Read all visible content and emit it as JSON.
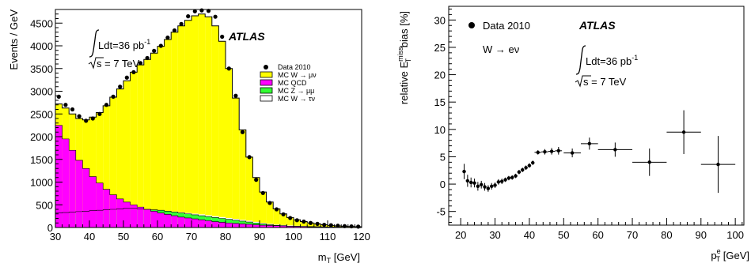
{
  "chart_data": [
    {
      "type": "histogram",
      "xlabel": "m",
      "xlabel_sub": "T",
      "xlabel_unit": "[GeV]",
      "ylabel": "Events / GeV",
      "xlim": [
        30,
        120
      ],
      "ylim": [
        0,
        4800
      ],
      "xticks": [
        "30",
        "40",
        "50",
        "60",
        "70",
        "80",
        "90",
        "100",
        "110",
        "120"
      ],
      "yticks": [
        "0",
        "500",
        "1000",
        "1500",
        "2000",
        "2500",
        "3000",
        "3500",
        "4000",
        "4500"
      ],
      "annotation": {
        "lumi": "Ldt=36 pb",
        "lumi_sup": "-1",
        "energy": "s = 7 TeV",
        "experiment": "ATLAS"
      },
      "legend_position": "top-right",
      "legend": [
        {
          "label": "Data 2010",
          "style": "marker",
          "color": "#000000"
        },
        {
          "label": "MC W → μν",
          "style": "fill",
          "color": "#ffff00"
        },
        {
          "label": "MC QCD",
          "style": "fill",
          "color": "#ff00ff"
        },
        {
          "label": "MC Z → μμ",
          "style": "fill",
          "color": "#33ff33"
        },
        {
          "label": "MC W → τν",
          "style": "fill",
          "color": "#ffffff"
        }
      ],
      "bin_edges": [
        30,
        32,
        34,
        36,
        38,
        40,
        42,
        44,
        46,
        48,
        50,
        52,
        54,
        56,
        58,
        60,
        62,
        64,
        66,
        68,
        70,
        72,
        74,
        76,
        78,
        80,
        82,
        84,
        86,
        88,
        90,
        92,
        94,
        96,
        98,
        100,
        102,
        104,
        106,
        108,
        110,
        112,
        114,
        116,
        118,
        120
      ],
      "stack": {
        "qcd": [
          2250,
          1950,
          1700,
          1480,
          1300,
          1120,
          980,
          840,
          720,
          630,
          560,
          500,
          450,
          400,
          360,
          320,
          290,
          260,
          230,
          210,
          190,
          170,
          150,
          130,
          115,
          100,
          90,
          80,
          70,
          60,
          50,
          45,
          40,
          35,
          30,
          25,
          22,
          20,
          18,
          15,
          12,
          10,
          8,
          6,
          5
        ],
        "zmumu": [
          320,
          330,
          340,
          350,
          360,
          370,
          380,
          390,
          400,
          410,
          420,
          420,
          410,
          400,
          390,
          380,
          360,
          340,
          320,
          300,
          280,
          260,
          240,
          220,
          200,
          180,
          160,
          140,
          120,
          100,
          80,
          60,
          50,
          40,
          30,
          25,
          20,
          15,
          12,
          10,
          8,
          6,
          5,
          4,
          3
        ],
        "wtaunu": [
          340,
          345,
          350,
          355,
          360,
          370,
          380,
          390,
          400,
          410,
          420,
          420,
          410,
          400,
          390,
          380,
          365,
          350,
          335,
          320,
          305,
          290,
          270,
          250,
          230,
          210,
          190,
          170,
          150,
          125,
          100,
          80,
          65,
          55,
          45,
          38,
          32,
          27,
          23,
          19,
          16,
          13,
          11,
          9,
          7
        ],
        "total": [
          2720,
          2630,
          2500,
          2400,
          2370,
          2430,
          2530,
          2680,
          2870,
          3050,
          3230,
          3420,
          3580,
          3700,
          3840,
          3990,
          4140,
          4300,
          4440,
          4560,
          4660,
          4700,
          4640,
          4440,
          4100,
          3500,
          2850,
          2150,
          1550,
          1100,
          780,
          560,
          410,
          300,
          220,
          170,
          130,
          100,
          80,
          60,
          45,
          35,
          28,
          22,
          18
        ]
      },
      "data": {
        "x": [
          31,
          33,
          35,
          37,
          39,
          41,
          43,
          45,
          47,
          49,
          51,
          53,
          55,
          57,
          59,
          61,
          63,
          65,
          67,
          69,
          71,
          73,
          75,
          77,
          79,
          81,
          83,
          85,
          87,
          89,
          91,
          93,
          95,
          97,
          99,
          101,
          103,
          105,
          107,
          109,
          111,
          113,
          115,
          117,
          119
        ],
        "y": [
          2880,
          2700,
          2600,
          2450,
          2350,
          2400,
          2500,
          2700,
          2880,
          3100,
          3300,
          3420,
          3620,
          3730,
          3890,
          4000,
          4180,
          4340,
          4480,
          4650,
          4760,
          4780,
          4770,
          4640,
          4200,
          3500,
          2900,
          2100,
          1550,
          1050,
          760,
          540,
          400,
          290,
          210,
          160,
          130,
          100,
          80,
          60,
          50,
          40,
          30,
          25,
          20
        ]
      }
    },
    {
      "type": "scatter",
      "xlabel": "p",
      "xlabel_sub": "T",
      "xlabel_sup": "e",
      "xlabel_unit": "[GeV]",
      "ylabel_pre": "relative E",
      "ylabel_sub": "T",
      "ylabel_sup": "miss",
      "ylabel_post": " bias [%]",
      "xlim": [
        16.5,
        102.5
      ],
      "ylim": [
        -7.5,
        32.5
      ],
      "xticks": [
        "20",
        "30",
        "40",
        "50",
        "60",
        "70",
        "80",
        "90",
        "100"
      ],
      "yticks": [
        "-5",
        "0",
        "5",
        "10",
        "15",
        "20",
        "25",
        "30"
      ],
      "annotation": {
        "data_label": "Data 2010",
        "channel": "W → eν",
        "lumi": "Ldt=36 pb",
        "lumi_sup": "-1",
        "energy": "s = 7 TeV",
        "experiment": "ATLAS"
      },
      "points": [
        {
          "x": 21,
          "y": 2.3,
          "xerr": 0.5,
          "yerr": 1.4
        },
        {
          "x": 22,
          "y": 0.6,
          "xerr": 0.5,
          "yerr": 1.1
        },
        {
          "x": 23,
          "y": 0.3,
          "xerr": 0.5,
          "yerr": 0.9
        },
        {
          "x": 24,
          "y": 0.2,
          "xerr": 0.5,
          "yerr": 0.8
        },
        {
          "x": 25,
          "y": -0.4,
          "xerr": 0.5,
          "yerr": 0.8
        },
        {
          "x": 26,
          "y": -0.1,
          "xerr": 0.5,
          "yerr": 0.7
        },
        {
          "x": 27,
          "y": -0.5,
          "xerr": 0.5,
          "yerr": 0.7
        },
        {
          "x": 28,
          "y": -0.8,
          "xerr": 0.5,
          "yerr": 0.6
        },
        {
          "x": 29,
          "y": -0.4,
          "xerr": 0.5,
          "yerr": 0.6
        },
        {
          "x": 30,
          "y": -0.2,
          "xerr": 0.5,
          "yerr": 0.5
        },
        {
          "x": 31,
          "y": 0.4,
          "xerr": 0.5,
          "yerr": 0.5
        },
        {
          "x": 32,
          "y": 0.5,
          "xerr": 0.5,
          "yerr": 0.5
        },
        {
          "x": 33,
          "y": 0.8,
          "xerr": 0.5,
          "yerr": 0.4
        },
        {
          "x": 34,
          "y": 1.1,
          "xerr": 0.5,
          "yerr": 0.4
        },
        {
          "x": 35,
          "y": 1.2,
          "xerr": 0.5,
          "yerr": 0.4
        },
        {
          "x": 36,
          "y": 1.5,
          "xerr": 0.5,
          "yerr": 0.4
        },
        {
          "x": 37,
          "y": 2.2,
          "xerr": 0.5,
          "yerr": 0.4
        },
        {
          "x": 38,
          "y": 2.6,
          "xerr": 0.5,
          "yerr": 0.4
        },
        {
          "x": 39,
          "y": 3.0,
          "xerr": 0.5,
          "yerr": 0.4
        },
        {
          "x": 40,
          "y": 3.4,
          "xerr": 0.5,
          "yerr": 0.4
        },
        {
          "x": 41,
          "y": 3.9,
          "xerr": 0.5,
          "yerr": 0.4
        },
        {
          "x": 42.5,
          "y": 5.8,
          "xerr": 1.0,
          "yerr": 0.4
        },
        {
          "x": 44.5,
          "y": 5.9,
          "xerr": 1.0,
          "yerr": 0.5
        },
        {
          "x": 46.5,
          "y": 6.0,
          "xerr": 1.0,
          "yerr": 0.6
        },
        {
          "x": 48.5,
          "y": 6.1,
          "xerr": 1.0,
          "yerr": 0.7
        },
        {
          "x": 52.5,
          "y": 5.7,
          "xerr": 2.5,
          "yerr": 0.8
        },
        {
          "x": 57.5,
          "y": 7.4,
          "xerr": 2.5,
          "yerr": 1.1
        },
        {
          "x": 65,
          "y": 6.3,
          "xerr": 5,
          "yerr": 1.3
        },
        {
          "x": 75,
          "y": 4.0,
          "xerr": 5,
          "yerr": 2.5
        },
        {
          "x": 85,
          "y": 9.5,
          "xerr": 5,
          "yerr": 4.0
        },
        {
          "x": 95,
          "y": 3.6,
          "xerr": 5,
          "yerr": 5.2
        }
      ]
    }
  ]
}
